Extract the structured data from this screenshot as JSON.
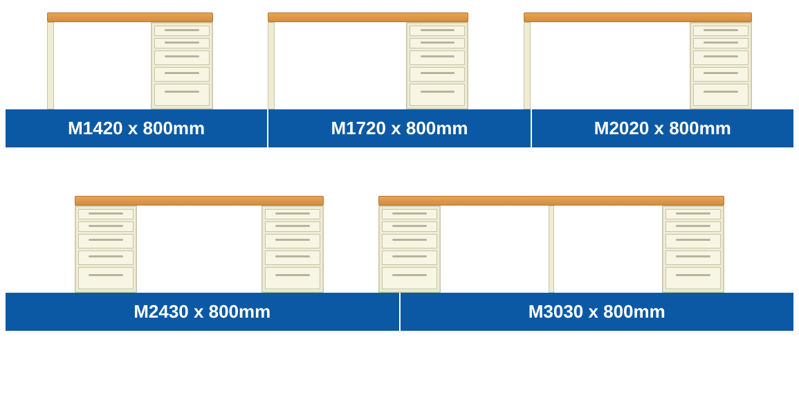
{
  "colors": {
    "label_bg": "#0b59a4",
    "label_text": "#ffffff",
    "wood_top": "#e5a55a",
    "wood_bottom": "#d38e3f",
    "cabinet_body": "#efecd4",
    "cabinet_border": "#c8c4a8",
    "drawer_face": "#f7f5e4",
    "handle": "#b7b49a"
  },
  "row1": {
    "items": [
      {
        "label": "M1420 x 800mm"
      },
      {
        "label": "M1720 x 800mm"
      },
      {
        "label": "M2020 x 800mm"
      }
    ]
  },
  "row2": {
    "items": [
      {
        "label": "M2430 x 800mm"
      },
      {
        "label": "M3030 x 800mm"
      }
    ]
  }
}
